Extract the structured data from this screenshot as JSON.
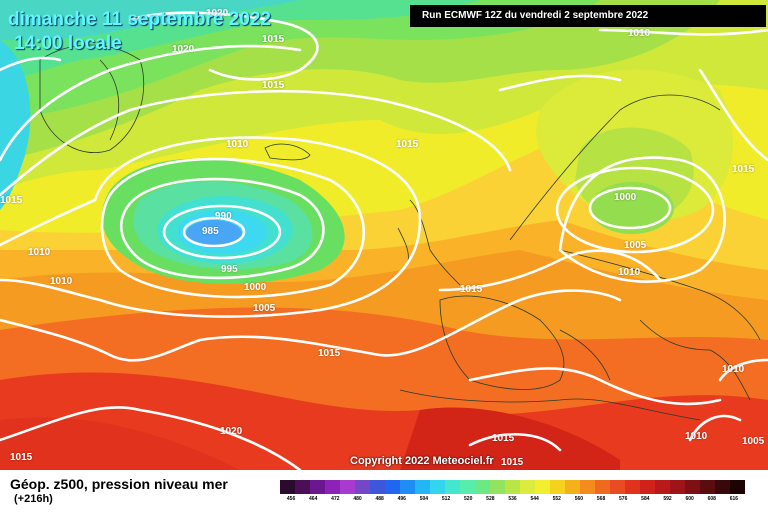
{
  "header": {
    "date_line": "dimanche 11 septembre 2022",
    "time_line": "14:00 locale",
    "run_info": "Run ECMWF 12Z du vendredi 2 septembre 2022"
  },
  "map": {
    "copyright": "Copyright 2022 Meteociel.fr",
    "isobar_labels": [
      "1020",
      "1015",
      "1020",
      "1010",
      "1015",
      "1015",
      "1010",
      "1015",
      "990",
      "985",
      "995",
      "1000",
      "1005",
      "1010",
      "1010",
      "1015",
      "1015",
      "1020",
      "1015",
      "1000",
      "1005",
      "1010",
      "1015",
      "1015",
      "1010",
      "1010",
      "1005",
      "1010",
      "1015"
    ],
    "highlight_colors": {
      "low_core": "#49a6f5",
      "low_inner": "#3cd9f0",
      "high_red": "#e8281e"
    }
  },
  "legend": {
    "title": "Géop. z500, pression niveau mer",
    "lead_time": "(+216h)",
    "scale_values": [
      "456",
      "464",
      "472",
      "480",
      "488",
      "496",
      "504",
      "512",
      "520",
      "528",
      "536",
      "544",
      "552",
      "560",
      "568",
      "576",
      "584",
      "592",
      "600",
      "608",
      "616"
    ],
    "scale_colors": [
      "#2a0b2e",
      "#4a0f56",
      "#6b1790",
      "#8c23b6",
      "#a83ad0",
      "#7347c8",
      "#3d57d8",
      "#2166ee",
      "#1e8ef4",
      "#22b6f6",
      "#33d4ee",
      "#45e6cf",
      "#56edad",
      "#6be985",
      "#92e35f",
      "#b9e545",
      "#dcec3c",
      "#f3ef2e",
      "#f6d21e",
      "#f6b01a",
      "#f38c1c",
      "#ef6a1e",
      "#ea4b21",
      "#e0321c",
      "#d0211a",
      "#b9191a",
      "#9e1418",
      "#7e1013",
      "#5a0c0e",
      "#3a080a",
      "#1c0405"
    ]
  }
}
